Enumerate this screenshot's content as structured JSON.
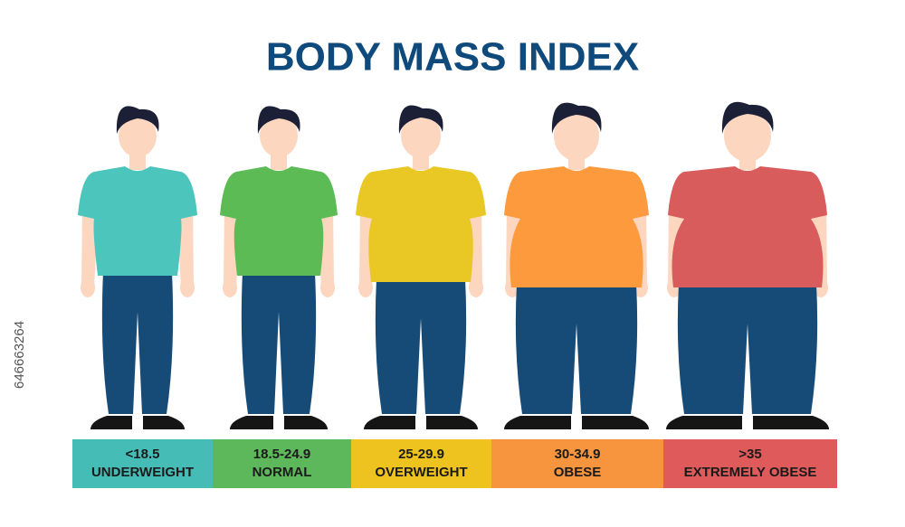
{
  "title": "BODY MASS INDEX",
  "side_text": "646663264",
  "categories": [
    {
      "range": "<18.5",
      "label": "UNDERWEIGHT",
      "color": "#45bdb6",
      "shirt": "#4cc5bc"
    },
    {
      "range": "18.5-24.9",
      "label": "NORMAL",
      "color": "#5db85b",
      "shirt": "#5cbb55"
    },
    {
      "range": "25-29.9",
      "label": "OVERWEIGHT",
      "color": "#eec31f",
      "shirt": "#e9c826"
    },
    {
      "range": "30-34.9",
      "label": "OBESE",
      "color": "#f7943e",
      "shirt": "#fd9a3e"
    },
    {
      "range": ">35",
      "label": "EXTREMELY OBESE",
      "color": "#df5b5b",
      "shirt": "#d85c5c"
    }
  ]
}
